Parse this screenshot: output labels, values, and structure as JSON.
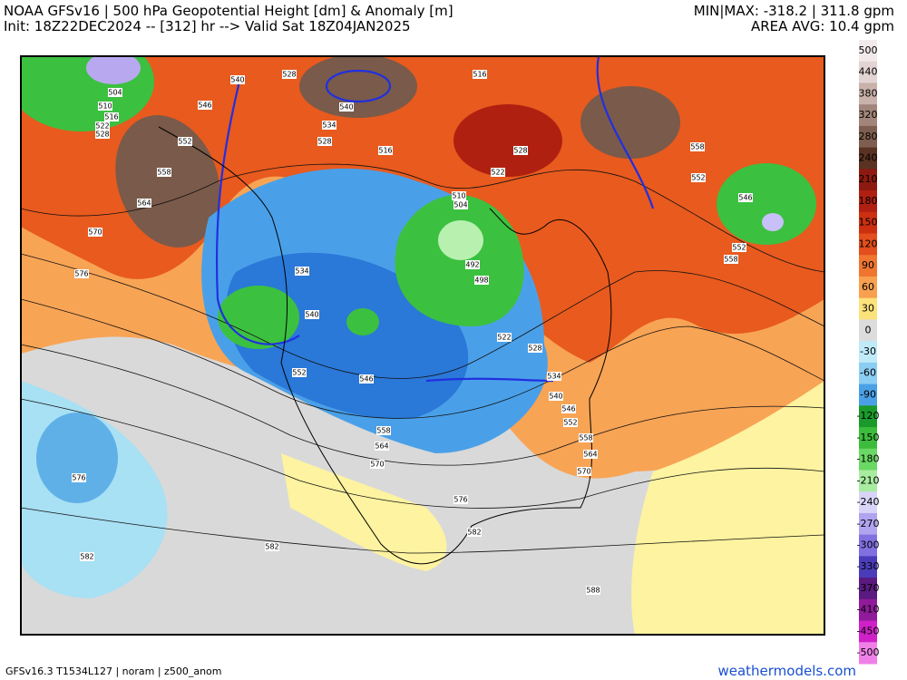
{
  "header": {
    "title": "NOAA GFSv16 | 500 hPa Geopotential Height [dm] & Anomaly [m]",
    "subtitle": "Init: 18Z22DEC2024 -- [312] hr --> Valid Sat 18Z04JAN2025",
    "min_max": "MIN|MAX: -318.2 | 311.8 gpm",
    "area_avg": "AREA AVG: 10.4 gpm"
  },
  "footer": {
    "info": "GFSv16.3 T1534L127 | noram | z500_anom",
    "site": "weathermodels.com"
  },
  "contour_labels": [
    "504",
    "510",
    "516",
    "522",
    "528",
    "546",
    "552",
    "558",
    "564",
    "570",
    "576",
    "528",
    "540",
    "534",
    "528",
    "516",
    "528",
    "522",
    "516",
    "510",
    "504",
    "492",
    "498",
    "534",
    "540",
    "552",
    "546",
    "522",
    "528",
    "534",
    "540",
    "546",
    "552",
    "558",
    "552",
    "546",
    "552",
    "558",
    "558",
    "564",
    "570",
    "576",
    "582",
    "582",
    "582",
    "588",
    "576",
    "558",
    "564",
    "570",
    "540"
  ],
  "colorbar": {
    "ticks": [
      500,
      440,
      380,
      320,
      280,
      240,
      210,
      180,
      150,
      120,
      90,
      60,
      30,
      0,
      -30,
      -60,
      -90,
      -120,
      -150,
      -180,
      -210,
      -240,
      -270,
      -300,
      -330,
      -370,
      -410,
      -450,
      -500
    ],
    "colors": [
      "#f2eaea",
      "#e2d4d2",
      "#c8b2aa",
      "#a2857a",
      "#7e5e50",
      "#5a3222",
      "#8c1a10",
      "#b02012",
      "#cc3010",
      "#e24e1c",
      "#f07630",
      "#f8a050",
      "#fce27a",
      "#dcdcdc",
      "#bfeaf8",
      "#8ccdf2",
      "#4aa0e6",
      "#1a9a2a",
      "#3cbc3c",
      "#6ad864",
      "#a8eca0",
      "#d8d4f8",
      "#b0a4f0",
      "#8070e0",
      "#4a3cb8",
      "#5a1a80",
      "#901a9a",
      "#d020c8",
      "#f080e8"
    ]
  }
}
